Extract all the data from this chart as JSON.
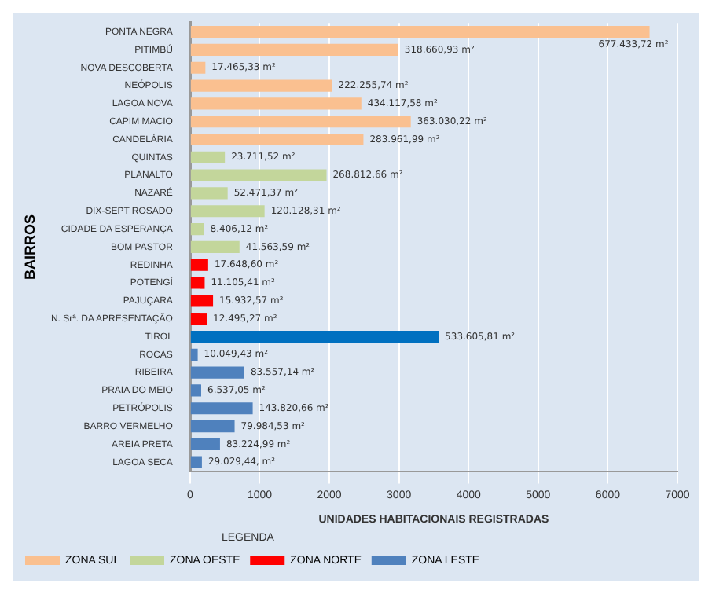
{
  "chart_data": {
    "type": "bar",
    "orientation": "horizontal",
    "ylabel": "BAIRROS",
    "xlabel": "UNIDADES HABITACIONAIS REGISTRADAS",
    "legend_title": "LEGENDA",
    "categories": [
      "PONTA NEGRA",
      "PITIMBÚ",
      "NOVA DESCOBERTA",
      "NEÓPOLIS",
      "LAGOA NOVA",
      "CAPIM MACIO",
      "CANDELÁRIA",
      "QUINTAS",
      "PLANALTO",
      "NAZARÉ",
      "DIX-SEPT ROSADO",
      "CIDADE DA ESPERANÇA",
      "BOM PASTOR",
      "REDINHA",
      "POTENGÍ",
      "PAJUÇARA",
      "N. Srª. DA APRESENTAÇÃO",
      "TIROL",
      "ROCAS",
      "RIBEIRA",
      "PRAIA DO MEIO",
      "PETRÓPOLIS",
      "BARRO VERMELHO",
      "AREIA PRETA",
      "LAGOA SECA"
    ],
    "series": [
      {
        "name": "ZONA SUL",
        "color": "#fac090",
        "values": [
          6600,
          2990,
          220,
          2040,
          2460,
          3170,
          2490,
          null,
          null,
          null,
          null,
          null,
          null,
          null,
          null,
          null,
          null,
          null,
          null,
          null,
          null,
          null,
          null,
          null,
          null
        ]
      },
      {
        "name": "ZONA OESTE",
        "color": "#c3d69b",
        "values": [
          null,
          null,
          null,
          null,
          null,
          null,
          null,
          500,
          1960,
          540,
          1070,
          200,
          710,
          null,
          null,
          null,
          null,
          null,
          null,
          null,
          null,
          null,
          null,
          null,
          null
        ]
      },
      {
        "name": "ZONA NORTE",
        "color": "#ff0000",
        "values": [
          null,
          null,
          null,
          null,
          null,
          null,
          null,
          null,
          null,
          null,
          null,
          null,
          null,
          260,
          210,
          330,
          240,
          null,
          null,
          null,
          null,
          null,
          null,
          null,
          null
        ]
      },
      {
        "name": "ZONA LESTE",
        "color": "#4f81bd",
        "colors": [
          null,
          null,
          null,
          null,
          null,
          null,
          null,
          null,
          null,
          null,
          null,
          null,
          null,
          null,
          null,
          null,
          null,
          "#0070c0",
          "#4f81bd",
          "#4f81bd",
          "#4f81bd",
          "#4f81bd",
          "#4f81bd",
          "#4f81bd",
          "#4f81bd"
        ],
        "values": [
          null,
          null,
          null,
          null,
          null,
          null,
          null,
          null,
          null,
          null,
          null,
          null,
          null,
          null,
          null,
          null,
          null,
          3570,
          110,
          780,
          160,
          900,
          640,
          430,
          170
        ]
      }
    ],
    "annotations": [
      {
        "text": "677.433,72 m²",
        "x": 6600,
        "y": "PONTA NEGRA"
      },
      {
        "text": "318.660,93 m²",
        "x": 2990,
        "y": "PITIMBÚ"
      },
      {
        "text": "17.465,33 m²",
        "x": 220,
        "y": "NOVA DESCOBERTA"
      },
      {
        "text": "222.255,74 m²",
        "x": 2040,
        "y": "NEÓPOLIS"
      },
      {
        "text": "434.117,58 m²",
        "x": 2460,
        "y": "LAGOA NOVA"
      },
      {
        "text": "363.030,22 m²",
        "x": 3170,
        "y": "CAPIM MACIO"
      },
      {
        "text": "283.961,99 m²",
        "x": 2490,
        "y": "CANDELÁRIA"
      },
      {
        "text": "23.711,52 m²",
        "x": 500,
        "y": "QUINTAS"
      },
      {
        "text": "268.812,66 m²",
        "x": 1960,
        "y": "PLANALTO"
      },
      {
        "text": "52.471,37 m²",
        "x": 540,
        "y": "NAZARÉ"
      },
      {
        "text": "120.128,31 m²",
        "x": 1070,
        "y": "DIX-SEPT ROSADO"
      },
      {
        "text": "8.406,12 m²",
        "x": 200,
        "y": "CIDADE DA ESPERANÇA"
      },
      {
        "text": "41.563,59 m²",
        "x": 710,
        "y": "BOM PASTOR"
      },
      {
        "text": "17.648,60 m²",
        "x": 260,
        "y": "REDINHA"
      },
      {
        "text": "11.105,41 m²",
        "x": 210,
        "y": "POTENGÍ"
      },
      {
        "text": "15.932,57 m²",
        "x": 330,
        "y": "PAJUÇARA"
      },
      {
        "text": "12.495,27 m²",
        "x": 240,
        "y": "N. Srª. DA APRESENTAÇÃO"
      },
      {
        "text": "533.605,81 m²",
        "x": 3570,
        "y": "TIROL"
      },
      {
        "text": "10.049,43 m²",
        "x": 110,
        "y": "ROCAS"
      },
      {
        "text": "83.557,14 m²",
        "x": 780,
        "y": "RIBEIRA"
      },
      {
        "text": "6.537,05 m²",
        "x": 160,
        "y": "PRAIA DO MEIO"
      },
      {
        "text": "143.820,66 m²",
        "x": 900,
        "y": "PETRÓPOLIS"
      },
      {
        "text": "79.984,53 m²",
        "x": 640,
        "y": "BARRO VERMELHO"
      },
      {
        "text": "83.224,99 m²",
        "x": 430,
        "y": "AREIA PRETA"
      },
      {
        "text": "29.029,44, m²",
        "x": 170,
        "y": "LAGOA SECA"
      }
    ],
    "xlim": [
      0,
      7000
    ],
    "xticks": [
      0,
      1000,
      2000,
      3000,
      4000,
      5000,
      6000,
      7000
    ],
    "grid": "x",
    "legend": "bottom left"
  }
}
